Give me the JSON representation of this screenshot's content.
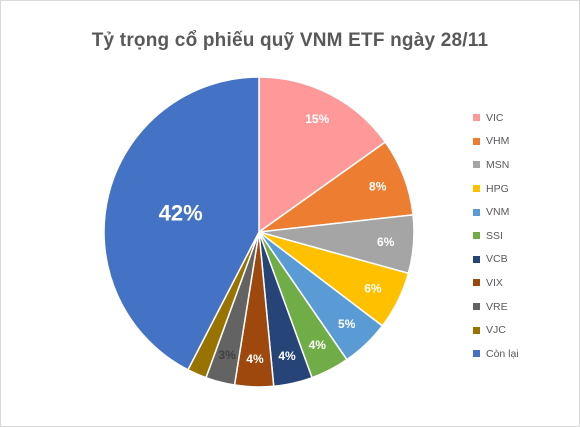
{
  "chart_data": {
    "type": "pie",
    "title": "Tỷ trọng cổ phiếu quỹ VNM ETF ngày 28/11",
    "categories": [
      "VIC",
      "VHM",
      "MSN",
      "HPG",
      "VNM",
      "SSI",
      "VCB",
      "VIX",
      "VRE",
      "VJC",
      "Còn lại"
    ],
    "values": [
      15,
      8,
      6,
      6,
      5,
      4,
      4,
      4,
      3,
      2,
      42
    ],
    "data_labels": [
      "15%",
      "8%",
      "6%",
      "6%",
      "5%",
      "4%",
      "4%",
      "4%",
      "3%",
      "",
      "42%"
    ],
    "colors": [
      "#ff9999",
      "#ed7d31",
      "#a5a5a5",
      "#ffc000",
      "#5b9bd5",
      "#70ad47",
      "#264478",
      "#9e480e",
      "#636363",
      "#997300",
      "#4472c4"
    ],
    "label_colors": [
      "#ffffff",
      "#ffffff",
      "#ffffff",
      "#ffffff",
      "#ffffff",
      "#ffffff",
      "#ffffff",
      "#ffffff",
      "#404040",
      "#ffffff",
      "#ffffff"
    ],
    "legend_position": "right"
  }
}
